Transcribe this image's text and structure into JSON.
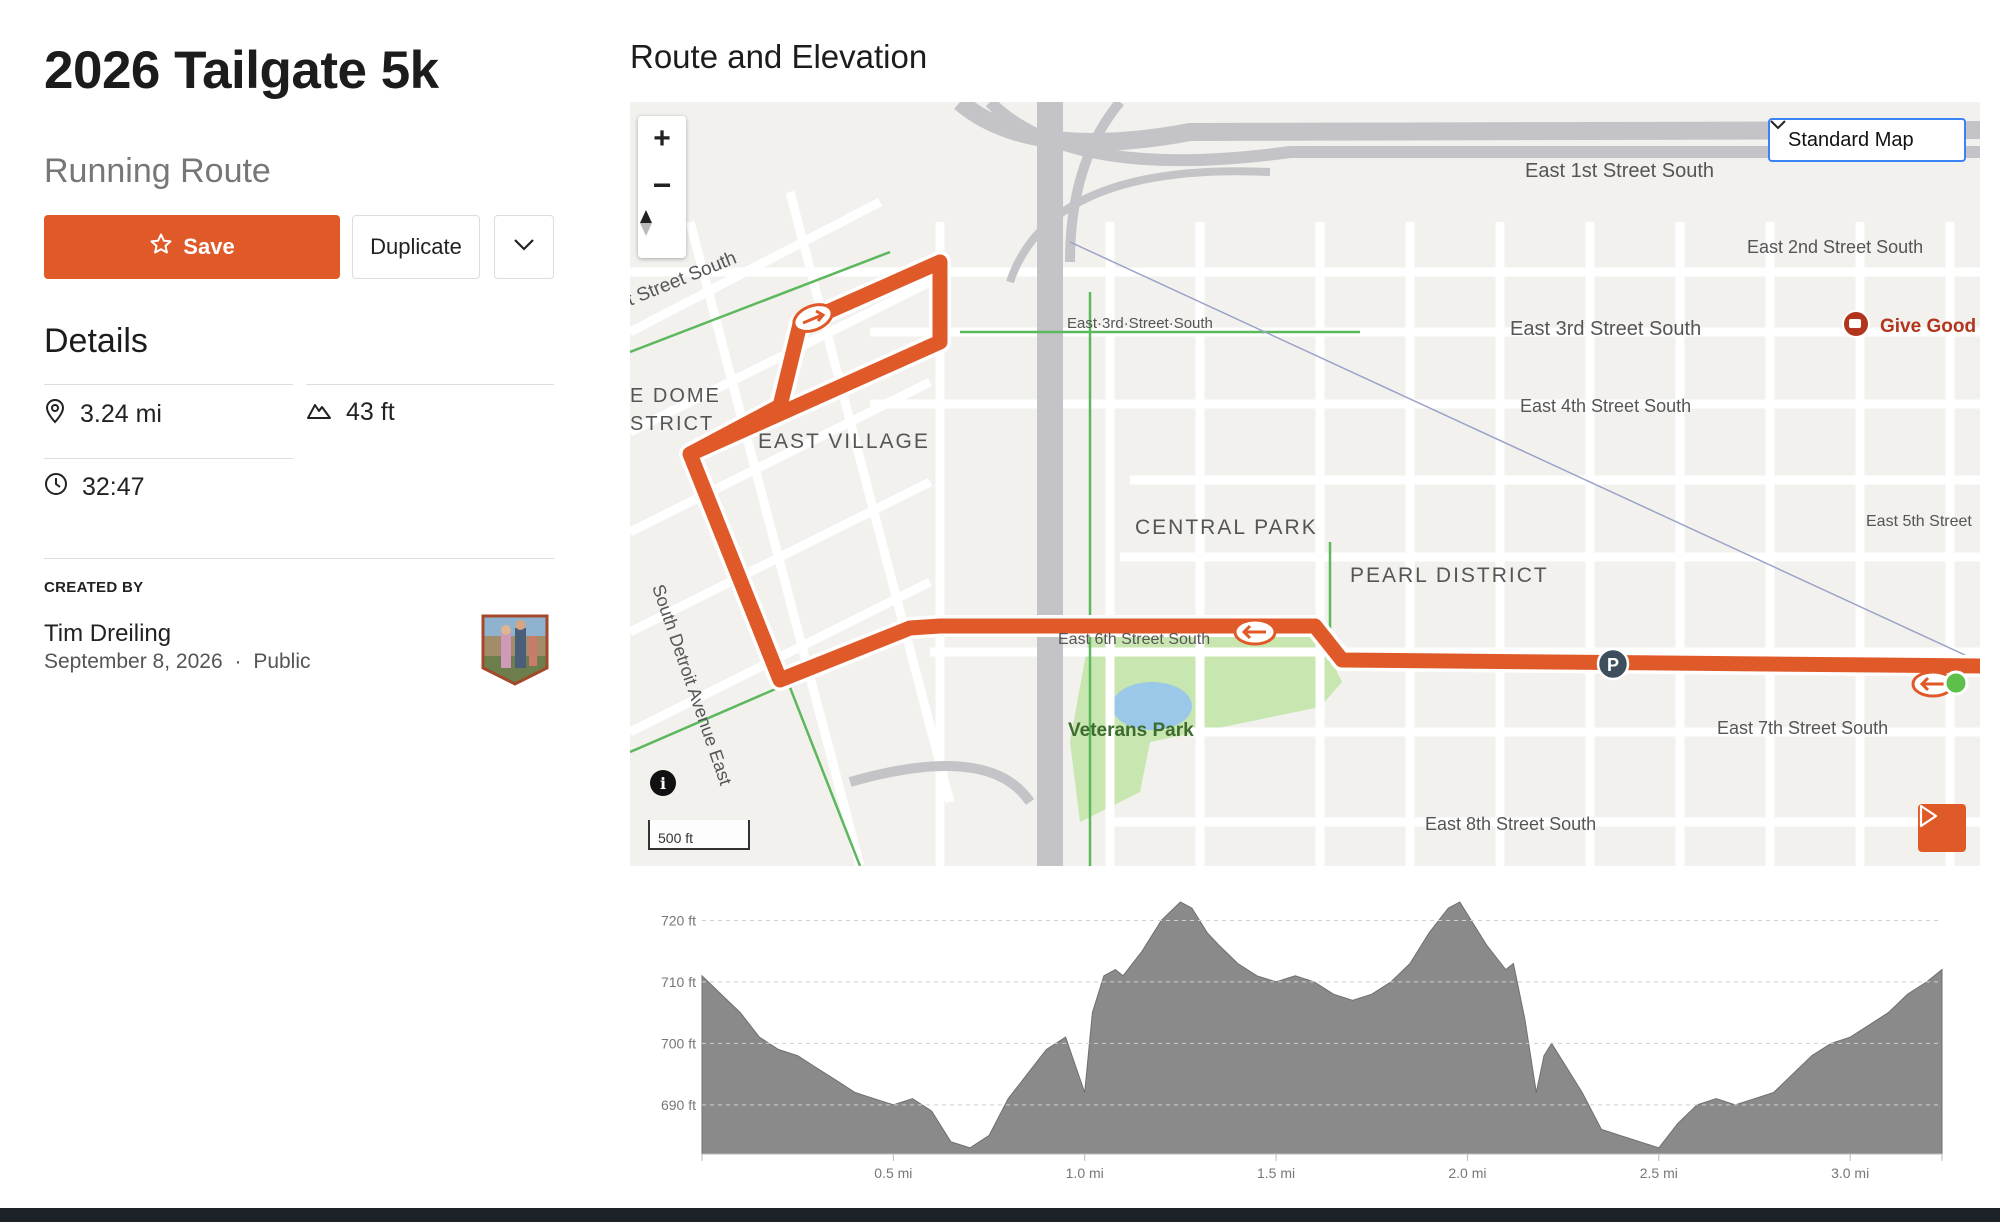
{
  "route": {
    "title": "2026 Tailgate 5k",
    "type_label": "Running Route"
  },
  "actions": {
    "save_label": "Save",
    "duplicate_label": "Duplicate"
  },
  "details": {
    "heading": "Details",
    "distance": "3.24 mi",
    "elevation_gain": "43 ft",
    "duration": "32:47"
  },
  "creator": {
    "heading": "CREATED BY",
    "name": "Tim Dreiling",
    "date": "September 8, 2026",
    "separator": "·",
    "visibility": "Public"
  },
  "route_panel": {
    "heading": "Route and Elevation",
    "map_style": "Standard Map",
    "scale_label": "500 ft",
    "colors": {
      "route": "#df5a28",
      "accent": "#3b82f6",
      "park": "#c8e6b0"
    }
  },
  "map_labels": {
    "streets": [
      "East 1st Street South",
      "East 2nd Street South",
      "East 3rd Street South",
      "East·3rd·Street·South",
      "East 4th Street South",
      "East 5th Street",
      "East 6th Street South",
      "East 7th Street South",
      "East 8th Street South",
      "t Street South",
      "South Detroit Avenue East"
    ],
    "districts": [
      "EAST VILLAGE",
      "CENTRAL PARK",
      "PEARL DISTRICT",
      "E DOME",
      "STRICT"
    ],
    "places": [
      "Veterans Park",
      "Give Good"
    ]
  },
  "chart_data": {
    "type": "area",
    "title": "",
    "xlabel": "",
    "ylabel": "",
    "x_ticks": [
      "0.5 mi",
      "1.0 mi",
      "1.5 mi",
      "2.0 mi",
      "2.5 mi",
      "3.0 mi"
    ],
    "y_ticks": [
      "720 ft",
      "710 ft",
      "700 ft",
      "690 ft"
    ],
    "xlim": [
      0,
      3.24
    ],
    "ylim": [
      682,
      723
    ],
    "grid": true,
    "series": [
      {
        "x": [
          0,
          0.05,
          0.1,
          0.15,
          0.2,
          0.25,
          0.3,
          0.35,
          0.4,
          0.45,
          0.5,
          0.55,
          0.6,
          0.65,
          0.7,
          0.75,
          0.8,
          0.85,
          0.9,
          0.95,
          1.0,
          1.02,
          1.05,
          1.08,
          1.1,
          1.15,
          1.2,
          1.25,
          1.28,
          1.32,
          1.35,
          1.4,
          1.45,
          1.5,
          1.55,
          1.6,
          1.65,
          1.7,
          1.75,
          1.8,
          1.85,
          1.9,
          1.95,
          1.98,
          2.0,
          2.05,
          2.1,
          2.12,
          2.15,
          2.18,
          2.2,
          2.22,
          2.25,
          2.3,
          2.35,
          2.4,
          2.45,
          2.5,
          2.55,
          2.6,
          2.65,
          2.7,
          2.75,
          2.8,
          2.85,
          2.9,
          2.95,
          3.0,
          3.05,
          3.1,
          3.15,
          3.2,
          3.24
        ],
        "y": [
          711,
          708,
          705,
          701,
          699,
          698,
          696,
          694,
          692,
          691,
          690,
          691,
          689,
          684,
          683,
          685,
          691,
          695,
          699,
          701,
          692,
          705,
          711,
          712,
          711,
          715,
          720,
          723,
          722,
          718,
          716,
          713,
          711,
          710,
          711,
          710,
          708,
          707,
          708,
          710,
          713,
          718,
          722,
          723,
          721,
          716,
          712,
          713,
          704,
          692,
          698,
          700,
          697,
          692,
          686,
          685,
          684,
          683,
          687,
          690,
          691,
          690,
          691,
          692,
          695,
          698,
          700,
          701,
          703,
          705,
          708,
          710,
          712
        ]
      }
    ]
  }
}
